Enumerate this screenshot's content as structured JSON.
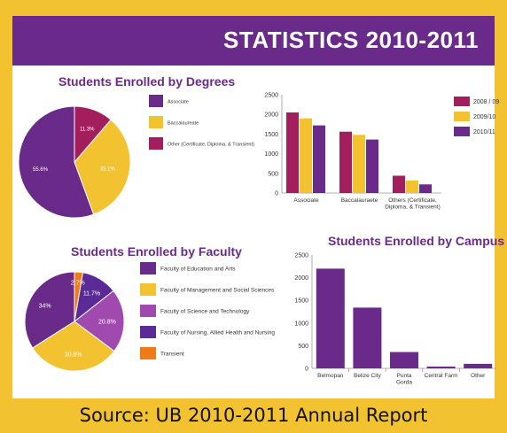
{
  "header": {
    "title": "STATISTICS 2010-2011"
  },
  "footer": {
    "source": "Source: UB 2010-2011 Annual Report"
  },
  "colors": {
    "purple": "#6a2a8a",
    "gold": "#f2c230",
    "maroon": "#a31e5c",
    "violet": "#a04ab0",
    "indigo": "#5a2a96",
    "orange": "#f07a18"
  },
  "chart_data": [
    {
      "type": "pie",
      "title": "Students Enrolled by Degrees",
      "labels": [
        "Associate",
        "Baccalaureate",
        "Other (Certificate, Diploma, & Transient)"
      ],
      "values": [
        55.6,
        33.1,
        11.3
      ],
      "value_labels": [
        "55.6%",
        "33.1%",
        "11.3%"
      ],
      "colors": [
        "#6a2a8a",
        "#f2c230",
        "#a31e5c"
      ],
      "legend": "right"
    },
    {
      "type": "bar",
      "title": "",
      "categories": [
        "Associate",
        "Baccalauraete",
        "Others (Certificate, Diploma, & Transient)"
      ],
      "series": [
        {
          "name": "2008 / 09",
          "values": [
            2050,
            1560,
            440
          ],
          "color": "#a31e5c"
        },
        {
          "name": "2009/10",
          "values": [
            1900,
            1480,
            320
          ],
          "color": "#f2c230"
        },
        {
          "name": "2010/11",
          "values": [
            1720,
            1360,
            220
          ],
          "color": "#6a2a8a"
        }
      ],
      "yticks": [
        0,
        500,
        1000,
        1500,
        2000,
        2500
      ],
      "ylim": [
        0,
        2500
      ],
      "legend": "right"
    },
    {
      "type": "pie",
      "title": "Students Enrolled by Faculty",
      "labels": [
        "Faculty of Education and Arts",
        "Faculty of Management and Social Sciences",
        "Faculty of Science and Technology",
        "Faculty of Nursing, Allied Health and Nursing",
        "Transient"
      ],
      "values": [
        34,
        30.8,
        20.8,
        11.7,
        2.7
      ],
      "value_labels": [
        "34%",
        "30.8%",
        "20.8%",
        "11.7%",
        "2.7%"
      ],
      "colors": [
        "#6a2a8a",
        "#f2c230",
        "#a04ab0",
        "#5a2a96",
        "#f07a18"
      ],
      "legend": "right"
    },
    {
      "type": "bar",
      "title": "Students Enrolled by Campus",
      "categories": [
        "Belmopan",
        "Belize City",
        "Punta Gorda",
        "Central Farm",
        "Other"
      ],
      "values": [
        2200,
        1340,
        360,
        40,
        100
      ],
      "color": "#6a2a8a",
      "yticks": [
        0,
        500,
        1000,
        1500,
        2000,
        2500
      ],
      "ylim": [
        0,
        2500
      ]
    }
  ]
}
